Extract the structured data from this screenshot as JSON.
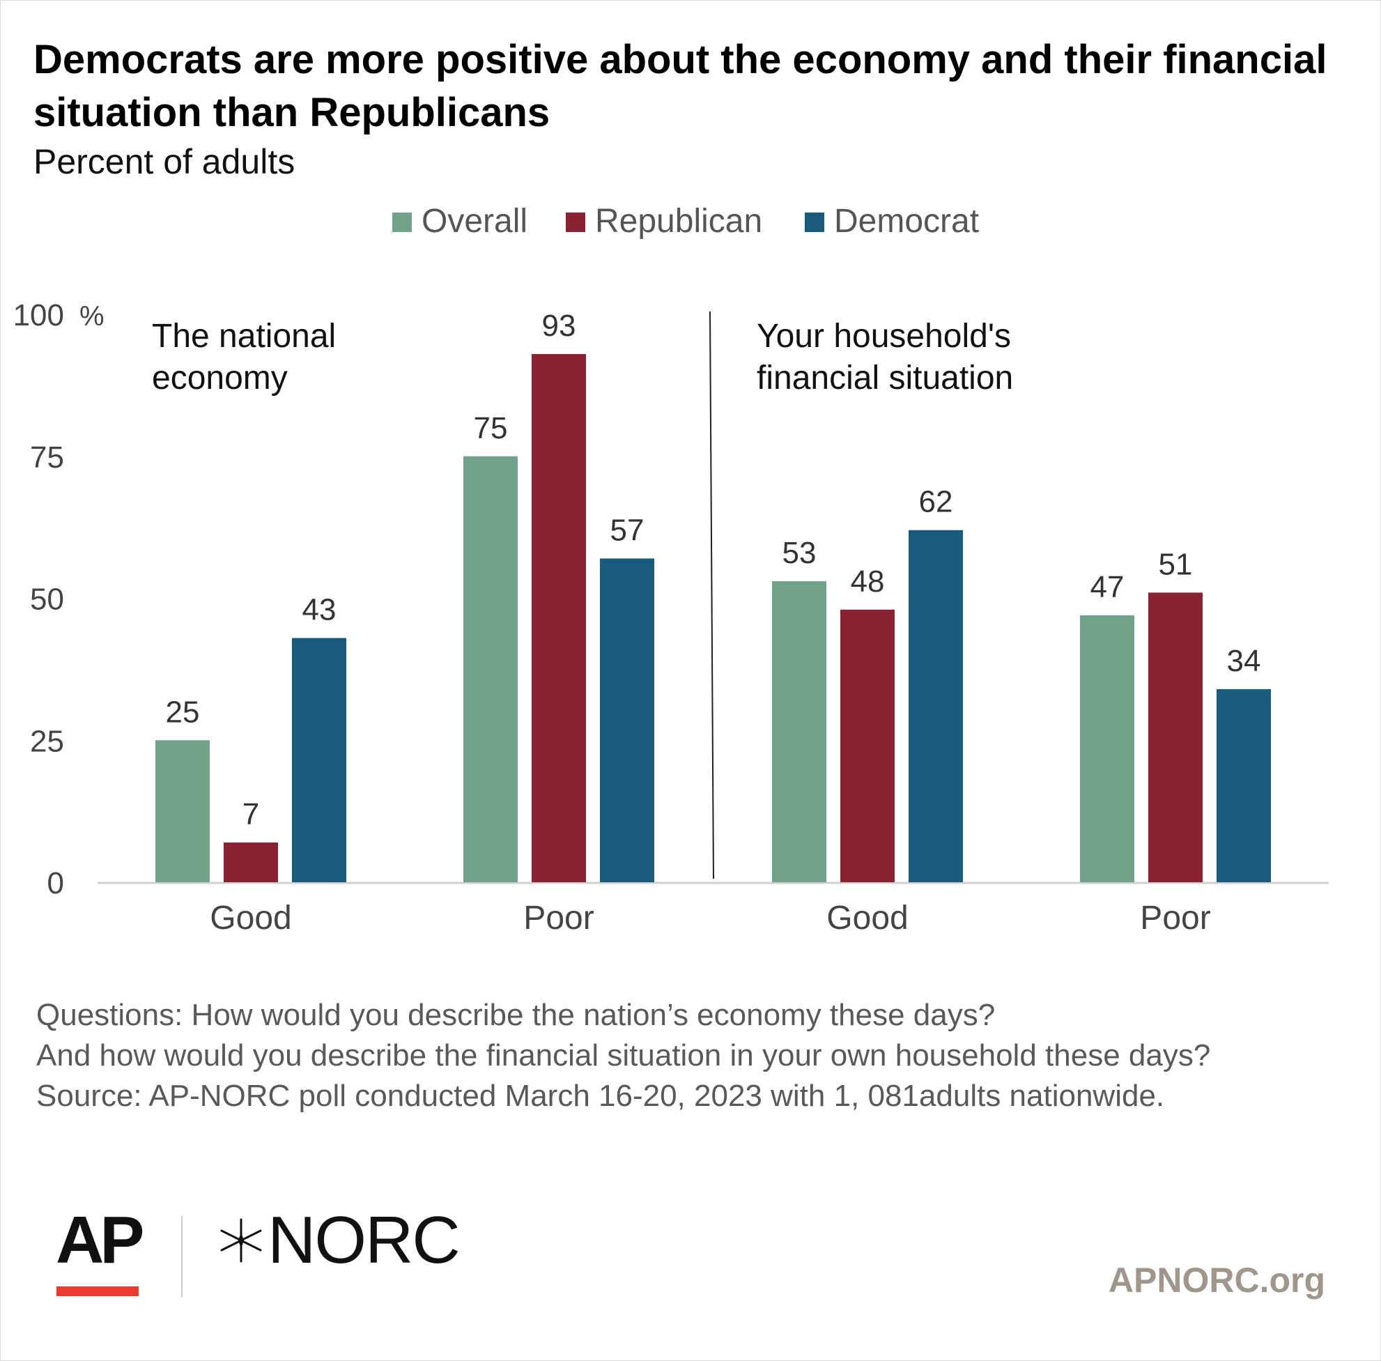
{
  "title": "Democrats are more positive about the economy and their financial situation than Republicans",
  "subtitle": "Percent of adults",
  "legend": [
    {
      "label": "Overall",
      "color": "#71a38b"
    },
    {
      "label": "Republican",
      "color": "#892333"
    },
    {
      "label": "Democrat",
      "color": "#195b7c"
    }
  ],
  "chart_data": {
    "type": "bar",
    "title": "Democrats are more positive about the economy and their financial situation than Republicans",
    "subtitle": "Percent of adults",
    "unit": "%",
    "ylim": [
      0,
      100
    ],
    "yticks": [
      0,
      25,
      50,
      75,
      100
    ],
    "grid": false,
    "legend_position": "top-center",
    "groups": [
      {
        "label": "The national economy",
        "label_lines": [
          "The national",
          "economy"
        ]
      },
      {
        "label": "Your household's financial situation",
        "label_lines": [
          "Your household's",
          "financial situation"
        ]
      }
    ],
    "categories": [
      "Good",
      "Poor",
      "Good",
      "Poor"
    ],
    "series": [
      {
        "name": "Overall",
        "color": "#71a38b",
        "values": [
          25,
          75,
          53,
          47
        ]
      },
      {
        "name": "Republican",
        "color": "#892333",
        "values": [
          7,
          93,
          48,
          51
        ]
      },
      {
        "name": "Democrat",
        "color": "#195b7c",
        "values": [
          43,
          57,
          62,
          34
        ]
      }
    ]
  },
  "notes": [
    "Questions: How would you describe the nation’s economy these days?",
    "And how would you describe the financial situation in your own household these days?",
    "Source: AP-NORC poll conducted March 16-20, 2023 with 1, 081adults nationwide."
  ],
  "logos": {
    "ap": "AP",
    "norc": "NORC",
    "norc_mark": "star-mark"
  },
  "site": "APNORC.org"
}
